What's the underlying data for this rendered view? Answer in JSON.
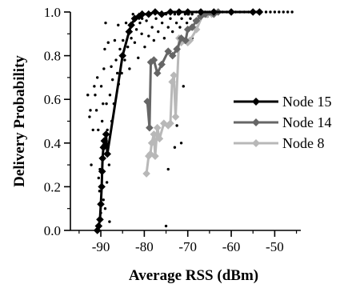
{
  "chart_data": {
    "type": "scatter",
    "title": "",
    "xlabel": "Average RSS (dBm)",
    "ylabel": "Delivery Probability",
    "xlim": [
      -97,
      -44
    ],
    "ylim": [
      0,
      1
    ],
    "x_ticks": [
      -90,
      -80,
      -70,
      -60,
      -50
    ],
    "y_ticks": [
      0.0,
      0.2,
      0.4,
      0.6,
      0.8,
      1.0
    ],
    "x_tick_labels": [
      "-90",
      "-80",
      "-70",
      "-60",
      "-50"
    ],
    "y_tick_labels": [
      "0.0",
      "0.2",
      "0.4",
      "0.6",
      "0.8",
      "1.0"
    ],
    "grid": false,
    "legend_position": "right",
    "series": [
      {
        "name": "Node 15",
        "color": "#000000",
        "marker": "diamond",
        "points": [
          [
            -90.8,
            0.0
          ],
          [
            -90.5,
            0.02
          ],
          [
            -90.2,
            0.05
          ],
          [
            -90.0,
            0.12
          ],
          [
            -89.8,
            0.2
          ],
          [
            -89.7,
            0.27
          ],
          [
            -89.6,
            0.33
          ],
          [
            -89.4,
            0.38
          ],
          [
            -89.2,
            0.41
          ],
          [
            -89.0,
            0.39
          ],
          [
            -88.8,
            0.44
          ],
          [
            -88.5,
            0.35
          ],
          [
            -85.0,
            0.8
          ],
          [
            -83.5,
            0.91
          ],
          [
            -83.0,
            0.94
          ],
          [
            -82.2,
            0.97
          ],
          [
            -81.2,
            0.98
          ],
          [
            -80.5,
            0.99
          ],
          [
            -79.0,
            0.99
          ],
          [
            -77.5,
            1.0
          ],
          [
            -76.0,
            0.99
          ],
          [
            -74.0,
            1.0
          ],
          [
            -72.0,
            1.0
          ],
          [
            -70.0,
            1.0
          ],
          [
            -67.0,
            1.0
          ],
          [
            -64.0,
            1.0
          ],
          [
            -60.0,
            1.0
          ],
          [
            -55.0,
            1.0
          ],
          [
            -53.5,
            1.0
          ]
        ]
      },
      {
        "name": "Node 14",
        "color": "#666666",
        "marker": "diamond",
        "points": [
          [
            -79.3,
            0.59
          ],
          [
            -78.8,
            0.47
          ],
          [
            -78.5,
            0.77
          ],
          [
            -77.8,
            0.78
          ],
          [
            -77.0,
            0.72
          ],
          [
            -76.0,
            0.76
          ],
          [
            -74.5,
            0.82
          ],
          [
            -73.5,
            0.8
          ],
          [
            -72.5,
            0.83
          ],
          [
            -71.5,
            0.88
          ],
          [
            -70.5,
            0.87
          ],
          [
            -70.0,
            0.92
          ],
          [
            -69.0,
            0.93
          ],
          [
            -68.0,
            0.96
          ],
          [
            -67.0,
            0.98
          ],
          [
            -66.0,
            0.99
          ],
          [
            -64.0,
            0.99
          ],
          [
            -63.0,
            1.0
          ]
        ]
      },
      {
        "name": "Node 8",
        "color": "#b8b8b8",
        "marker": "diamond",
        "points": [
          [
            -79.5,
            0.26
          ],
          [
            -79.0,
            0.34
          ],
          [
            -78.6,
            0.35
          ],
          [
            -78.3,
            0.4
          ],
          [
            -77.8,
            0.44
          ],
          [
            -77.5,
            0.34
          ],
          [
            -77.0,
            0.47
          ],
          [
            -76.5,
            0.42
          ],
          [
            -75.5,
            0.49
          ],
          [
            -74.5,
            0.48
          ],
          [
            -74.0,
            0.49
          ],
          [
            -73.6,
            0.68
          ],
          [
            -73.2,
            0.71
          ],
          [
            -72.8,
            0.52
          ],
          [
            -72.0,
            0.88
          ],
          [
            -71.5,
            0.86
          ],
          [
            -70.0,
            0.86
          ],
          [
            -69.5,
            0.87
          ],
          [
            -68.0,
            0.92
          ],
          [
            -66.5,
            0.99
          ],
          [
            -65.5,
            0.99
          ],
          [
            -64.5,
            0.99
          ]
        ]
      },
      {
        "name": "",
        "color": "#000000",
        "marker": "dot",
        "points": [
          [
            -93.0,
            0.62
          ],
          [
            -92.6,
            0.52
          ],
          [
            -92.4,
            0.55
          ],
          [
            -92.2,
            0.3
          ],
          [
            -91.8,
            0.46
          ],
          [
            -91.5,
            0.66
          ],
          [
            -91.3,
            0.62
          ],
          [
            -91.0,
            0.55
          ],
          [
            -90.8,
            0.7
          ],
          [
            -90.6,
            0.46
          ],
          [
            -90.5,
            0.24
          ],
          [
            -90.3,
            0.18
          ],
          [
            -90.2,
            0.28
          ],
          [
            -90.0,
            0.08
          ],
          [
            -89.9,
            0.66
          ],
          [
            -89.7,
            0.5
          ],
          [
            -89.5,
            0.58
          ],
          [
            -89.3,
            0.74
          ],
          [
            -89.1,
            0.83
          ],
          [
            -88.9,
            0.95
          ],
          [
            -88.7,
            0.58
          ],
          [
            -88.5,
            0.46
          ],
          [
            -88.3,
            0.86
          ],
          [
            -88.1,
            0.3
          ],
          [
            -87.9,
            0.62
          ],
          [
            -87.6,
            0.75
          ],
          [
            -87.3,
            0.69
          ],
          [
            -87.0,
            0.58
          ],
          [
            -86.8,
            0.87
          ],
          [
            -86.5,
            0.78
          ],
          [
            -86.2,
            0.72
          ],
          [
            -85.9,
            0.67
          ],
          [
            -85.6,
            0.83
          ],
          [
            -85.2,
            0.72
          ],
          [
            -84.9,
            0.87
          ],
          [
            -84.5,
            0.78
          ],
          [
            -84.2,
            0.95
          ],
          [
            -83.8,
            0.84
          ],
          [
            -83.4,
            0.74
          ],
          [
            -83.0,
            0.88
          ],
          [
            -82.6,
            0.99
          ],
          [
            -82.2,
            0.86
          ],
          [
            -81.8,
            0.92
          ],
          [
            -81.4,
            0.79
          ],
          [
            -81.0,
            0.95
          ],
          [
            -80.6,
            0.9
          ],
          [
            -80.2,
            0.99
          ],
          [
            -79.9,
            0.84
          ],
          [
            -79.5,
            0.96
          ],
          [
            -79.0,
            0.89
          ],
          [
            -78.6,
            0.99
          ],
          [
            -78.2,
            0.93
          ],
          [
            -77.8,
            0.87
          ],
          [
            -77.3,
            0.97
          ],
          [
            -76.8,
            0.91
          ],
          [
            -76.4,
            0.99
          ],
          [
            -75.9,
            0.95
          ],
          [
            -75.4,
            0.88
          ],
          [
            -75.0,
            0.99
          ],
          [
            -74.5,
            0.93
          ],
          [
            -74.0,
            0.97
          ],
          [
            -73.5,
            0.91
          ],
          [
            -73.0,
            0.99
          ],
          [
            -72.6,
            0.95
          ],
          [
            -72.2,
            0.99
          ],
          [
            -71.8,
            0.93
          ],
          [
            -71.4,
            0.97
          ],
          [
            -71.0,
            0.66
          ],
          [
            -70.6,
            0.99
          ],
          [
            -70.2,
            0.95
          ],
          [
            -69.8,
            0.99
          ],
          [
            -69.4,
            0.97
          ],
          [
            -69.0,
            0.99
          ],
          [
            -68.5,
            0.96
          ],
          [
            -68.0,
            1.0
          ],
          [
            -67.5,
            0.98
          ],
          [
            -67.0,
            1.0
          ],
          [
            -66.5,
            0.99
          ],
          [
            -66.0,
            1.0
          ],
          [
            -65.5,
            0.98
          ],
          [
            -65.0,
            1.0
          ],
          [
            -64.5,
            0.99
          ],
          [
            -64.0,
            1.0
          ],
          [
            -63.0,
            1.0
          ],
          [
            -62.0,
            1.0
          ],
          [
            -61.0,
            1.0
          ],
          [
            -60.0,
            1.0
          ],
          [
            -59.0,
            1.0
          ],
          [
            -58.0,
            1.0
          ],
          [
            -57.0,
            1.0
          ],
          [
            -56.0,
            1.0
          ],
          [
            -55.0,
            1.0
          ],
          [
            -54.0,
            1.0
          ],
          [
            -52.0,
            1.0
          ],
          [
            -51.0,
            1.0
          ],
          [
            -50.0,
            1.0
          ],
          [
            -49.0,
            1.0
          ],
          [
            -48.0,
            1.0
          ],
          [
            -47.0,
            1.0
          ],
          [
            -46.0,
            1.0
          ],
          [
            -75.0,
            0.02
          ],
          [
            -88.0,
            0.04
          ],
          [
            -89.0,
            0.1
          ],
          [
            -88.6,
            0.22
          ],
          [
            -89.4,
            0.14
          ],
          [
            -87.5,
            0.5
          ],
          [
            -86.0,
            0.94
          ],
          [
            -80.5,
            0.97
          ],
          [
            -74.5,
            0.28
          ],
          [
            -73.0,
            0.38
          ],
          [
            -72.5,
            0.48
          ],
          [
            -71.5,
            0.4
          ],
          [
            -70.5,
            0.86
          ],
          [
            -69.0,
            0.88
          ],
          [
            -68.5,
            0.93
          ]
        ]
      }
    ]
  }
}
